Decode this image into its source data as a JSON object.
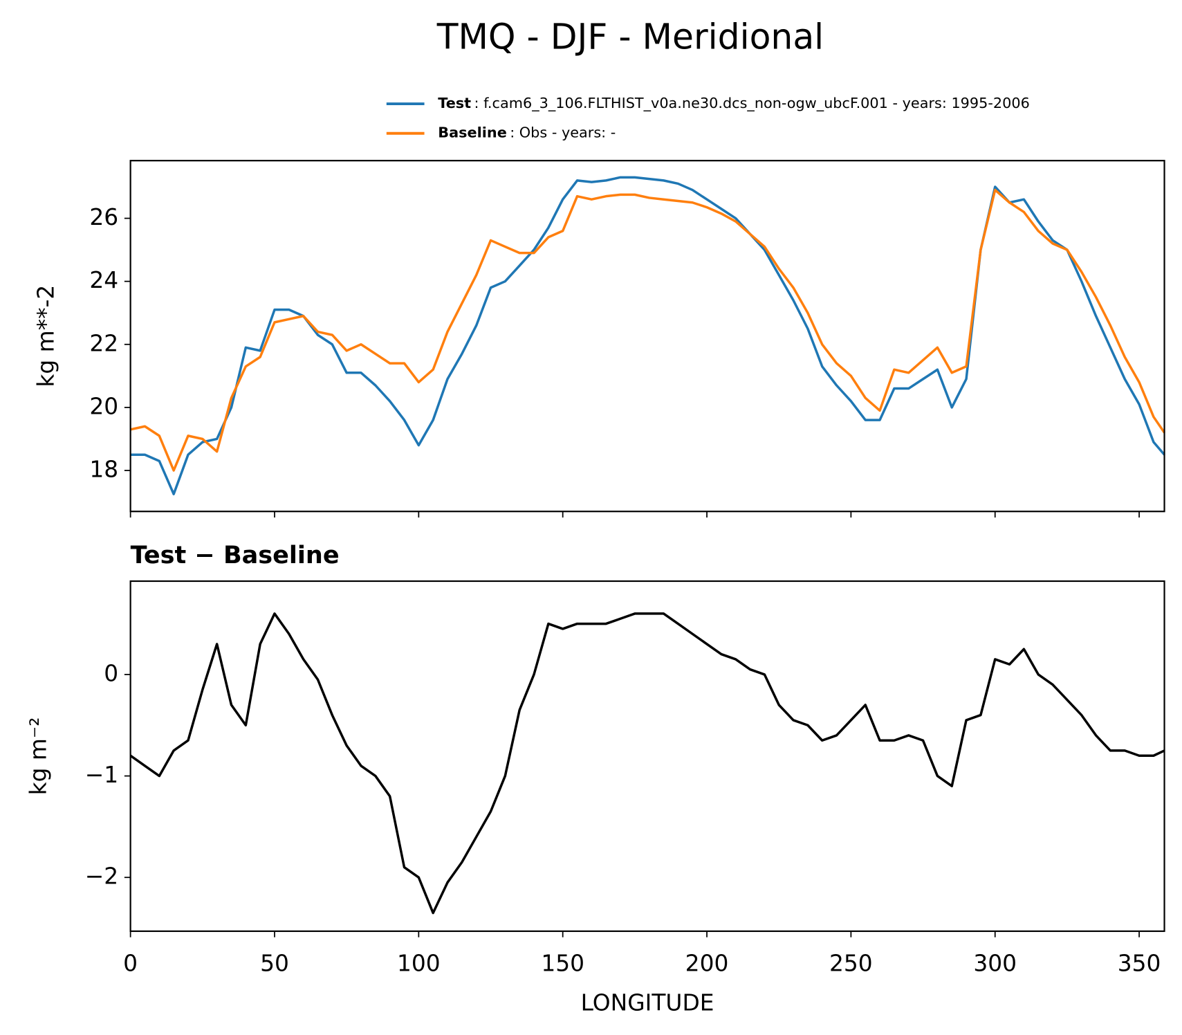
{
  "chart_data": [
    {
      "type": "line",
      "title": "TMQ - DJF - Meridional",
      "ylabel": "kg m**-2",
      "xlim": [
        0,
        358.75
      ],
      "ylim": [
        16.7,
        27.83
      ],
      "xticks": [
        0,
        50,
        100,
        150,
        200,
        250,
        300,
        350
      ],
      "yticks": [
        18,
        20,
        22,
        24,
        26
      ],
      "x": [
        0,
        5,
        10,
        15,
        20,
        25,
        30,
        35,
        40,
        45,
        50,
        55,
        60,
        65,
        70,
        75,
        80,
        85,
        90,
        95,
        100,
        105,
        110,
        115,
        120,
        125,
        130,
        135,
        140,
        145,
        150,
        155,
        160,
        165,
        170,
        175,
        180,
        185,
        190,
        195,
        200,
        205,
        210,
        215,
        220,
        225,
        230,
        235,
        240,
        245,
        250,
        255,
        260,
        265,
        270,
        275,
        280,
        285,
        290,
        295,
        300,
        305,
        310,
        315,
        320,
        325,
        330,
        335,
        340,
        345,
        350,
        355,
        358.75
      ],
      "series": [
        {
          "name": "Test",
          "description": ": f.cam6_3_106.FLTHIST_v0a.ne30.dcs_non-ogw_ubcF.001 - years: 1995-2006",
          "color": "#1f77b4",
          "values": [
            18.5,
            18.5,
            18.3,
            17.25,
            18.5,
            18.9,
            19.0,
            20.0,
            21.9,
            21.8,
            23.1,
            23.1,
            22.9,
            22.3,
            22.0,
            21.1,
            21.1,
            20.7,
            20.2,
            19.6,
            18.8,
            19.6,
            20.9,
            21.7,
            22.6,
            23.8,
            24.0,
            24.5,
            25.0,
            25.7,
            26.6,
            27.2,
            27.15,
            27.2,
            27.3,
            27.3,
            27.25,
            27.2,
            27.1,
            26.9,
            26.6,
            26.3,
            26.0,
            25.5,
            25.0,
            24.2,
            23.4,
            22.5,
            21.3,
            20.7,
            20.2,
            19.6,
            19.6,
            20.6,
            20.6,
            20.9,
            21.2,
            20.0,
            20.9,
            25.0,
            27.0,
            26.5,
            26.6,
            25.9,
            25.3,
            25.0,
            24.0,
            22.9,
            21.9,
            20.9,
            20.1,
            18.9,
            18.5
          ]
        },
        {
          "name": "Baseline",
          "description": ": Obs - years: -",
          "color": "#ff7f0e",
          "values": [
            19.3,
            19.4,
            19.1,
            18.0,
            19.1,
            19.0,
            18.6,
            20.3,
            21.3,
            21.6,
            22.7,
            22.8,
            22.9,
            22.4,
            22.3,
            21.8,
            22.0,
            21.7,
            21.4,
            21.4,
            20.8,
            21.2,
            22.4,
            23.3,
            24.2,
            25.3,
            25.1,
            24.9,
            24.9,
            25.4,
            25.6,
            26.7,
            26.6,
            26.7,
            26.75,
            26.75,
            26.65,
            26.6,
            26.55,
            26.5,
            26.35,
            26.15,
            25.9,
            25.5,
            25.1,
            24.4,
            23.8,
            23.0,
            22.0,
            21.4,
            21.0,
            20.3,
            19.9,
            21.2,
            21.1,
            21.5,
            21.9,
            21.1,
            21.3,
            25.0,
            26.9,
            26.5,
            26.2,
            25.6,
            25.2,
            25.0,
            24.3,
            23.5,
            22.6,
            21.6,
            20.8,
            19.7,
            19.2
          ]
        }
      ]
    },
    {
      "type": "line",
      "title": "Test − Baseline",
      "ylabel": "kg m⁻²",
      "xlabel": "LONGITUDE",
      "xlim": [
        0,
        358.75
      ],
      "ylim": [
        -2.53,
        0.92
      ],
      "xticks": [
        0,
        50,
        100,
        150,
        200,
        250,
        300,
        350
      ],
      "yticks": [
        {
          "value": -2,
          "label": "−2"
        },
        {
          "value": -1,
          "label": "−1"
        },
        0
      ],
      "x": [
        0,
        5,
        10,
        15,
        20,
        25,
        30,
        35,
        40,
        45,
        50,
        55,
        60,
        65,
        70,
        75,
        80,
        85,
        90,
        95,
        100,
        105,
        110,
        115,
        120,
        125,
        130,
        135,
        140,
        145,
        150,
        155,
        160,
        165,
        170,
        175,
        180,
        185,
        190,
        195,
        200,
        205,
        210,
        215,
        220,
        225,
        230,
        235,
        240,
        245,
        250,
        255,
        260,
        265,
        270,
        275,
        280,
        285,
        290,
        295,
        300,
        305,
        310,
        315,
        320,
        325,
        330,
        335,
        340,
        345,
        350,
        355,
        358.75
      ],
      "series": [
        {
          "color": "#000000",
          "values": [
            -0.8,
            -0.9,
            -1.0,
            -0.75,
            -0.65,
            -0.15,
            0.3,
            -0.3,
            -0.5,
            0.3,
            0.6,
            0.4,
            0.15,
            -0.05,
            -0.4,
            -0.7,
            -0.9,
            -1.0,
            -1.2,
            -1.9,
            -2.0,
            -2.35,
            -2.05,
            -1.85,
            -1.6,
            -1.35,
            -1.0,
            -0.35,
            0.0,
            0.5,
            0.45,
            0.5,
            0.5,
            0.5,
            0.55,
            0.6,
            0.6,
            0.6,
            0.5,
            0.4,
            0.3,
            0.2,
            0.15,
            0.05,
            0.0,
            -0.3,
            -0.45,
            -0.5,
            -0.65,
            -0.6,
            -0.45,
            -0.3,
            -0.65,
            -0.65,
            -0.6,
            -0.65,
            -1.0,
            -1.1,
            -0.45,
            -0.4,
            0.15,
            0.1,
            0.25,
            0.0,
            -0.1,
            -0.25,
            -0.4,
            -0.6,
            -0.75,
            -0.75,
            -0.8,
            -0.8,
            -0.75
          ]
        }
      ]
    }
  ]
}
